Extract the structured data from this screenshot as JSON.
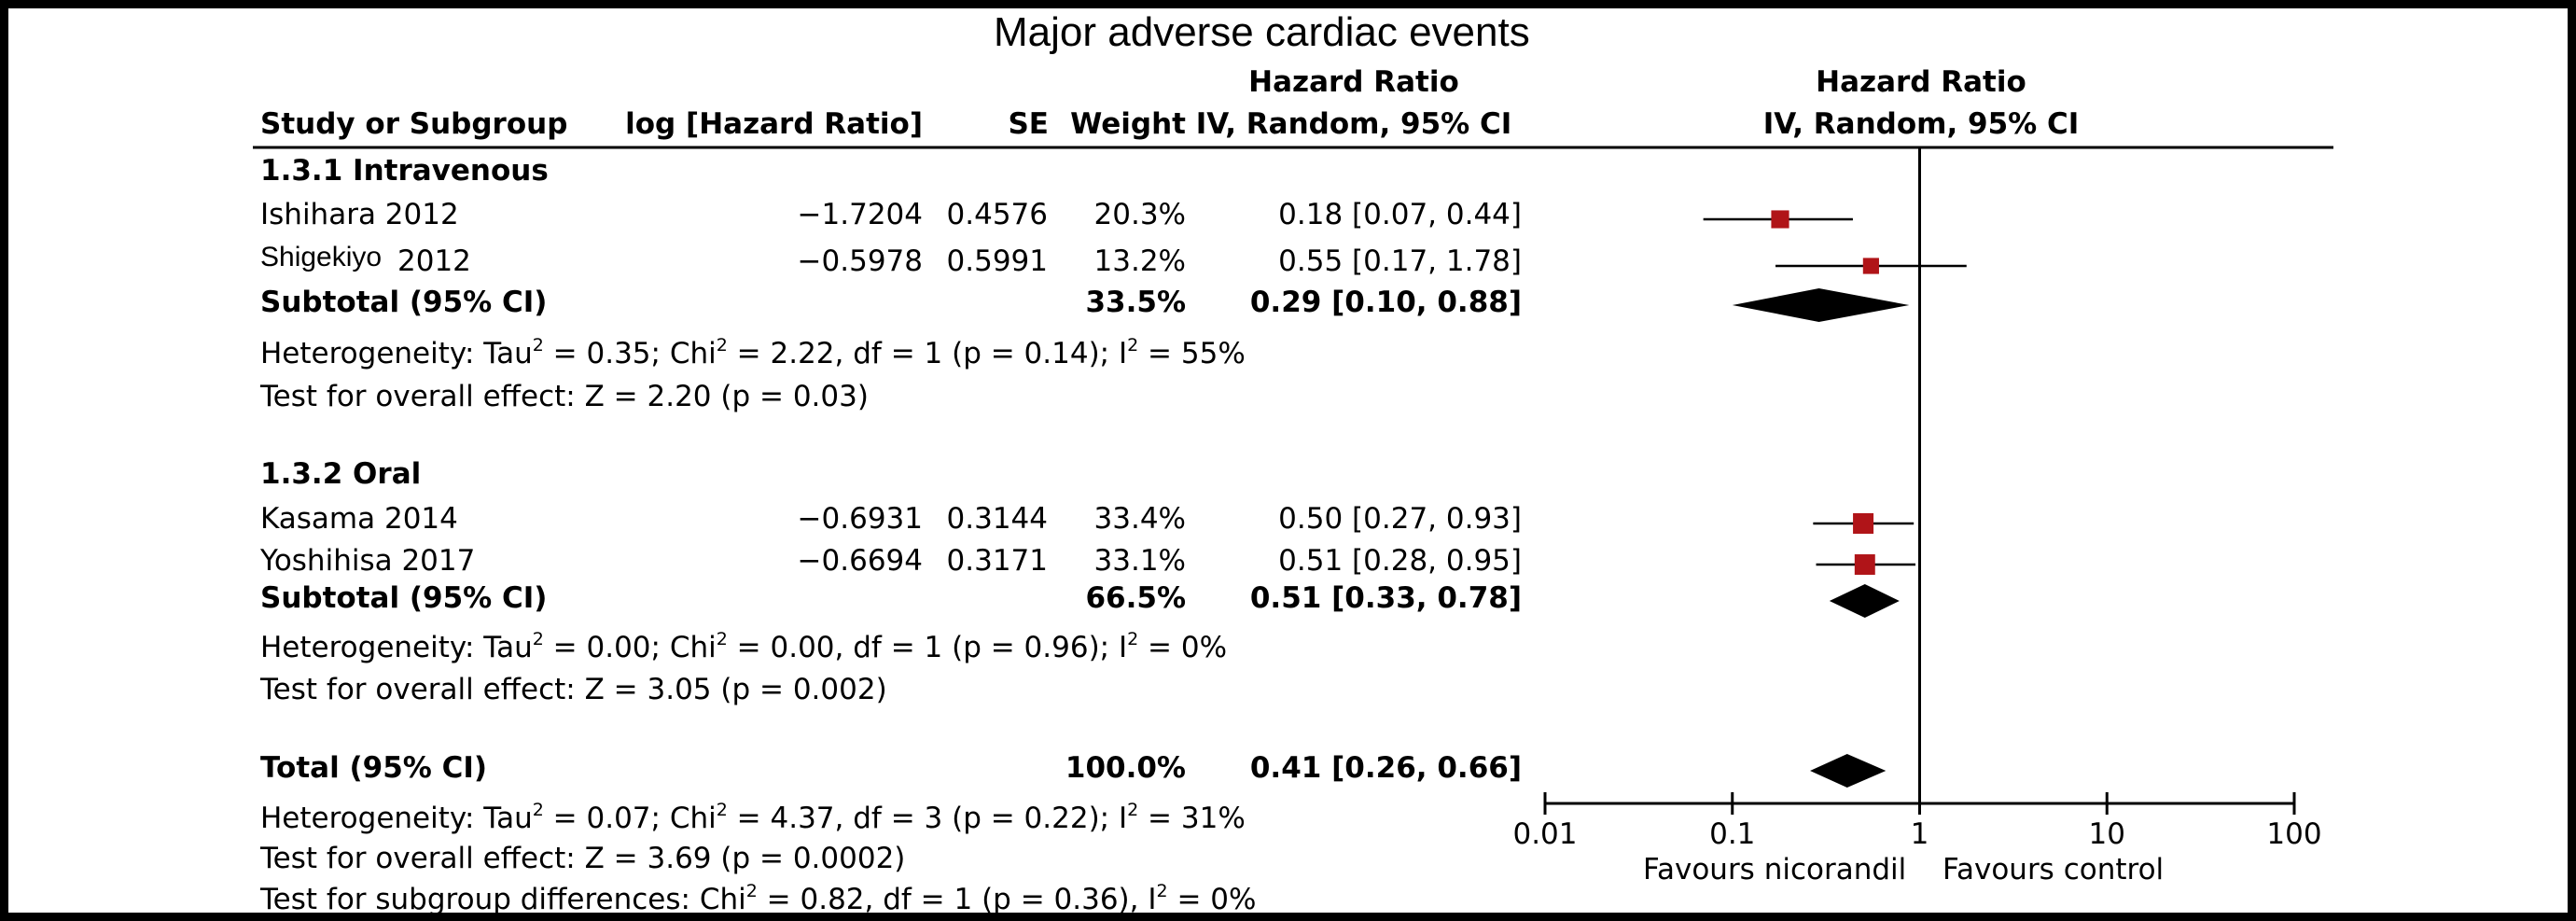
{
  "chart_data": {
    "type": "forest",
    "title": "Major adverse cardiac events",
    "columns": {
      "study": "Study or Subgroup",
      "loghr": "log [Hazard Ratio]",
      "se": "SE",
      "weight": "Weight",
      "hr_title": "Hazard Ratio",
      "hr_method": "IV, Random, 95% CI",
      "plot_title": "Hazard Ratio",
      "plot_method": "IV, Random, 95% CI"
    },
    "groups": [
      {
        "name": "1.3.1 Intravenous",
        "studies": [
          {
            "study": "Ishihara 2012",
            "loghr": "−1.7204",
            "se": "0.4576",
            "weight": "20.3%",
            "ci": "0.18 [0.07, 0.44]",
            "hr": 0.18,
            "lo": 0.07,
            "hi": 0.44,
            "w": 20.3
          },
          {
            "study_a": "Shigekiyo",
            "study_b": "2012",
            "loghr": "−0.5978",
            "se": "0.5991",
            "weight": "13.2%",
            "ci": "0.55 [0.17, 1.78]",
            "hr": 0.55,
            "lo": 0.17,
            "hi": 1.78,
            "w": 13.2
          }
        ],
        "subtotal": {
          "label": "Subtotal (95% CI)",
          "weight": "33.5%",
          "ci": "0.29 [0.10, 0.88]",
          "hr": 0.29,
          "lo": 0.1,
          "hi": 0.88
        },
        "heterogeneity": {
          "a": "Heterogeneity: Tau",
          "b": " = 0.35; Chi",
          "c": " = 2.22, df = 1 (p = 0.14); I",
          "d": " = 55%"
        },
        "overall": "Test for overall effect: Z = 2.20 (p = 0.03)"
      },
      {
        "name": "1.3.2 Oral",
        "studies": [
          {
            "study": "Kasama 2014",
            "loghr": "−0.6931",
            "se": "0.3144",
            "weight": "33.4%",
            "ci": "0.50 [0.27, 0.93]",
            "hr": 0.5,
            "lo": 0.27,
            "hi": 0.93,
            "w": 33.4
          },
          {
            "study": "Yoshihisa 2017",
            "loghr": "−0.6694",
            "se": "0.3171",
            "weight": "33.1%",
            "ci": "0.51 [0.28, 0.95]",
            "hr": 0.51,
            "lo": 0.28,
            "hi": 0.95,
            "w": 33.1
          }
        ],
        "subtotal": {
          "label": "Subtotal (95% CI)",
          "weight": "66.5%",
          "ci": "0.51 [0.33, 0.78]",
          "hr": 0.51,
          "lo": 0.33,
          "hi": 0.78
        },
        "heterogeneity": {
          "a": "Heterogeneity: Tau",
          "b": " = 0.00; Chi",
          "c": " = 0.00, df = 1 (p = 0.96); I",
          "d": " = 0%"
        },
        "overall": "Test for overall effect: Z = 3.05 (p = 0.002)"
      }
    ],
    "total": {
      "label": "Total (95% CI)",
      "weight": "100.0%",
      "ci": "0.41 [0.26, 0.66]",
      "hr": 0.41,
      "lo": 0.26,
      "hi": 0.66,
      "heterogeneity": {
        "a": "Heterogeneity: Tau",
        "b": " = 0.07; Chi",
        "c": " = 4.37, df = 3 (p = 0.22); I",
        "d": " = 31%"
      },
      "overall": "Test for overall effect: Z = 3.69 (p = 0.0002)",
      "subgroup": {
        "a": "Test for subgroup differences: Chi",
        "b": " = 0.82, df = 1 (p = 0.36), I",
        "c": " = 0%"
      },
      "sup": "2"
    },
    "axis": {
      "scale": "log",
      "ticks": [
        0.01,
        0.1,
        1,
        10,
        100
      ],
      "tick_labels": [
        "0.01",
        "0.1",
        "1",
        "10",
        "100"
      ],
      "left_label": "Favours nicorandil",
      "right_label": "Favours control",
      "xlim": [
        0.01,
        100
      ],
      "null_line": 1
    },
    "colors": {
      "study_marker": "#b01418",
      "diamond": "#000000",
      "line": "#000000"
    }
  }
}
